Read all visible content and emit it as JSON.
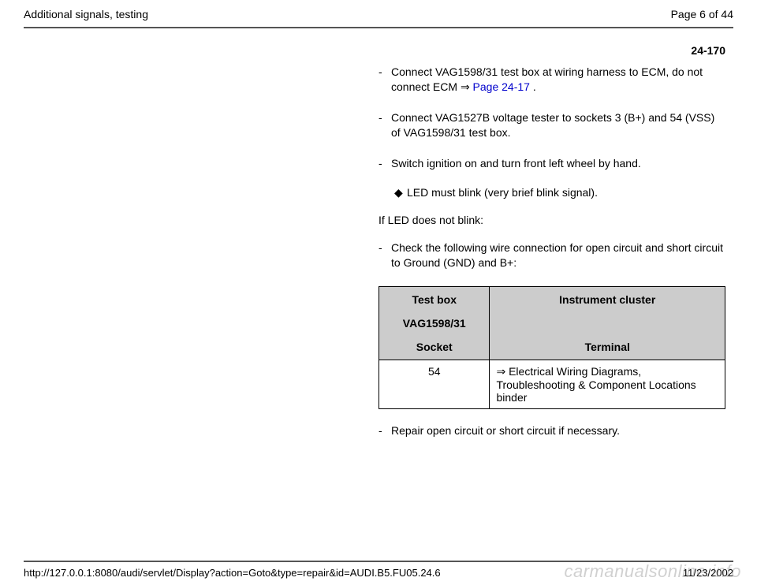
{
  "header": {
    "title": "Additional signals, testing",
    "page_of": "Page 6 of 44"
  },
  "page_number": "24-170",
  "steps": {
    "s1_prefix": "Connect VAG1598/31 test box at wiring harness to ECM, do not connect ECM ",
    "s1_arrow": "⇒",
    "s1_link": " Page 24-17 ",
    "s1_suffix": ".",
    "s2": "Connect VAG1527B voltage tester to sockets 3 (B+) and 54 (VSS) of VAG1598/31 test box.",
    "s3": "Switch ignition on and turn front left wheel by hand.",
    "bullet1": "LED must blink (very brief blink signal).",
    "cond": "If LED does not blink:",
    "s4": "Check the following wire connection for open circuit and short circuit to Ground (GND) and B+:",
    "s5": "Repair open circuit or short circuit if necessary."
  },
  "table": {
    "h_left_top": "Test box",
    "h_left_mid": "VAG1598/31",
    "h_left_bot": "Socket",
    "h_right_top": "Instrument cluster",
    "h_right_bot": "Terminal",
    "r1_left": "54",
    "r1_right_arrow": "⇒",
    "r1_right_text": " Electrical Wiring Diagrams, Troubleshooting & Component Locations binder"
  },
  "footer": {
    "url": "http://127.0.0.1:8080/audi/servlet/Display?action=Goto&type=repair&id=AUDI.B5.FU05.24.6",
    "date": "11/23/2002"
  },
  "watermark": "carmanualsonline.info"
}
